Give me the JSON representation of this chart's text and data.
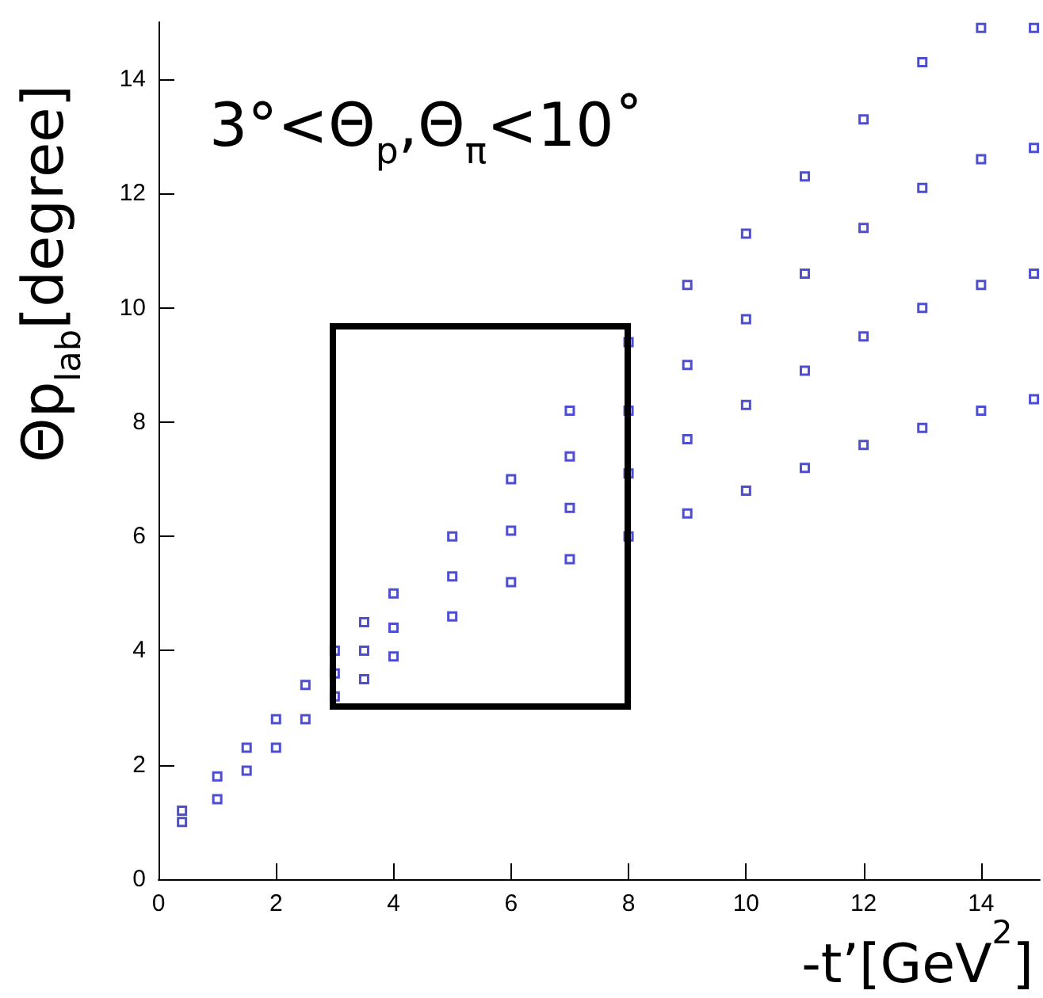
{
  "chart_data": {
    "type": "scatter",
    "xlabel": "-t’[GeV$^{2}$]",
    "ylabel": "Θp$_{lab}$[degree]",
    "annotations": [
      "3°<Θ$_{p}$,Θ$_{π}$<10˚"
    ],
    "marker": "square",
    "xlim": [
      0,
      15
    ],
    "xticks": [
      0,
      2,
      4,
      6,
      8,
      10,
      12,
      14
    ],
    "ylim": [
      0,
      15
    ],
    "yticks": [
      0,
      2,
      4,
      6,
      8,
      10,
      12,
      14
    ],
    "series": [
      {
        "color": "#2222c8",
        "x": [
          0.4,
          0.4,
          1,
          1,
          1.5,
          1.5,
          2,
          2,
          2.5,
          2.5,
          3,
          3,
          3,
          3.5,
          3.5,
          3.5,
          4,
          4,
          4,
          5,
          5,
          5,
          6,
          6,
          6,
          7,
          7,
          7,
          7,
          8,
          8,
          8,
          8,
          9,
          9,
          9,
          9,
          10,
          10,
          10,
          10,
          11,
          11,
          11,
          11,
          12,
          12,
          12,
          12,
          13,
          13,
          13,
          13,
          14,
          14,
          14,
          14,
          14.9,
          14.9,
          14.9,
          14.9
        ],
        "values": [
          1.0,
          1.2,
          1.4,
          1.8,
          1.9,
          2.3,
          2.3,
          2.8,
          2.8,
          3.4,
          3.2,
          3.6,
          4.0,
          3.5,
          4.0,
          4.5,
          3.9,
          4.4,
          5.0,
          4.6,
          5.3,
          6.0,
          5.2,
          6.1,
          7.0,
          5.6,
          6.5,
          7.4,
          8.2,
          6.0,
          7.1,
          8.2,
          9.4,
          6.4,
          7.7,
          9.0,
          10.4,
          6.8,
          8.3,
          9.8,
          11.3,
          7.2,
          8.9,
          10.6,
          12.3,
          7.6,
          9.5,
          11.4,
          13.3,
          7.9,
          10.0,
          12.1,
          14.3,
          8.2,
          10.4,
          12.6,
          14.9,
          8.4,
          10.6,
          12.8,
          14.9
        ]
      }
    ]
  }
}
